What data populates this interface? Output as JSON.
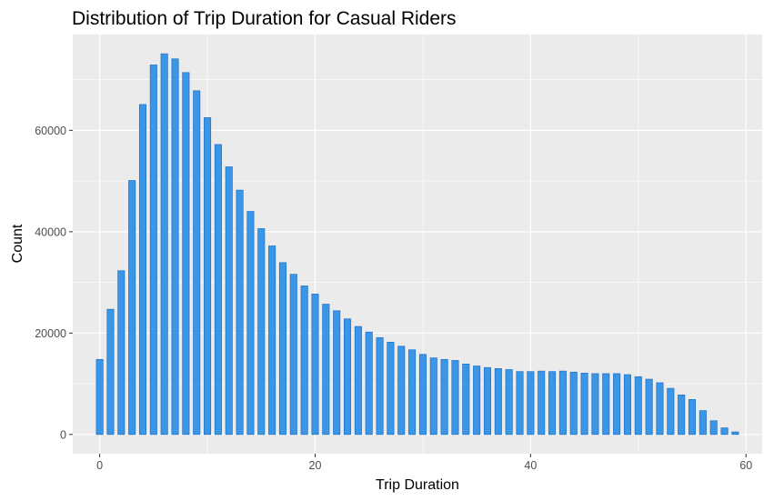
{
  "chart_data": {
    "type": "bar",
    "title": "Distribution of Trip Duration for Casual Riders",
    "xlabel": "Trip Duration",
    "ylabel": "Count",
    "x": [
      0,
      1,
      2,
      3,
      4,
      5,
      6,
      7,
      8,
      9,
      10,
      11,
      12,
      13,
      14,
      15,
      16,
      17,
      18,
      19,
      20,
      21,
      22,
      23,
      24,
      25,
      26,
      27,
      28,
      29,
      30,
      31,
      32,
      33,
      34,
      35,
      36,
      37,
      38,
      39,
      40,
      41,
      42,
      43,
      44,
      45,
      46,
      47,
      48,
      49,
      50,
      51,
      52,
      53,
      54,
      55,
      56,
      57,
      58,
      59
    ],
    "values": [
      14800,
      24700,
      32300,
      50100,
      65100,
      72900,
      75100,
      74100,
      71400,
      67800,
      62500,
      57200,
      52800,
      48200,
      44000,
      40600,
      37200,
      33900,
      31600,
      29300,
      27700,
      25700,
      24400,
      22800,
      21300,
      20200,
      19100,
      18200,
      17400,
      16700,
      15800,
      15100,
      14800,
      14600,
      13900,
      13500,
      13200,
      13000,
      12800,
      12400,
      12400,
      12500,
      12400,
      12500,
      12300,
      12100,
      12000,
      12000,
      12000,
      11800,
      11400,
      10900,
      10200,
      9100,
      7800,
      6900,
      4700,
      2700,
      1300,
      500
    ],
    "xlim": [
      -2.5,
      61.5
    ],
    "ylim": [
      -3800,
      78900
    ],
    "xticks": [
      0,
      20,
      40,
      60
    ],
    "xtick_labels": [
      "0",
      "20",
      "40",
      "60"
    ],
    "yticks": [
      0,
      20000,
      40000,
      60000
    ],
    "ytick_labels": [
      "0",
      "20000",
      "40000",
      "60000"
    ],
    "grid": true,
    "colors": {
      "bar_fill": "#3a96e6",
      "bar_stroke": "#1f6fc4",
      "panel_bg": "#ebebeb",
      "grid_major": "#ffffff"
    }
  }
}
